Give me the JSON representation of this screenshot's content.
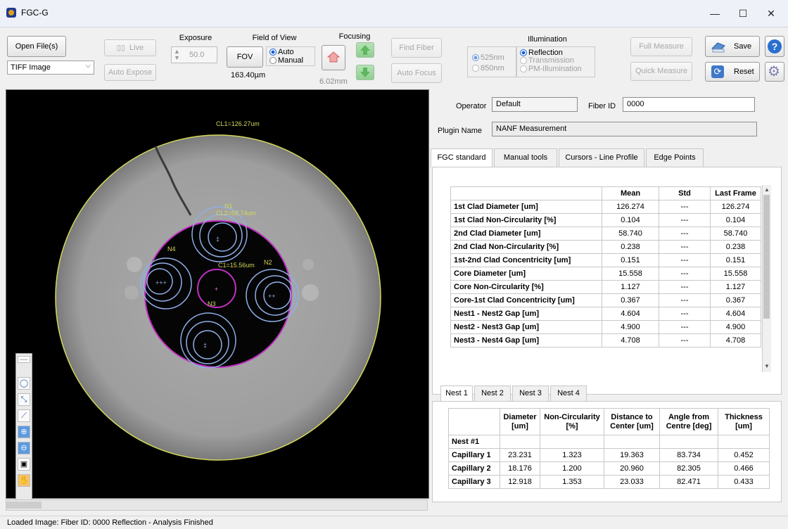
{
  "window": {
    "title": "FGC-G",
    "minimize": "—",
    "maximize": "☐",
    "close": "✕"
  },
  "toolbar": {
    "open_files": "Open File(s)",
    "file_type": "TIFF Image",
    "live": "Live",
    "auto_expose": "Auto Expose",
    "exposure_label": "Exposure",
    "exposure_value": "50.0",
    "fov_label": "Field of View",
    "fov_button": "FOV",
    "fov_auto": "Auto",
    "fov_manual": "Manual",
    "fov_value": "163.40µm",
    "focusing_label": "Focusing",
    "focus_value": "6.02mm",
    "find_fiber": "Find Fiber",
    "auto_focus": "Auto Focus",
    "illumination_label": "Illumination",
    "wl_525": "525nm",
    "wl_850": "850nm",
    "illum_reflection": "Reflection",
    "illum_transmission": "Transmission",
    "illum_pm": "PM-Illumination",
    "full_measure": "Full Measure",
    "quick_measure": "Quick Measure",
    "save": "Save",
    "reset": "Reset"
  },
  "image": {
    "cl1_label": "CL1=126.27um",
    "cl2_label": "CL2=58.74um",
    "core_label": "C1=15.56um",
    "n1": "N1",
    "n2": "N2",
    "n3": "N3",
    "n4": "N4"
  },
  "form": {
    "operator_label": "Operator",
    "operator_value": "Default",
    "fiber_id_label": "Fiber ID",
    "fiber_id_value": "0000",
    "plugin_label": "Plugin Name",
    "plugin_value": "NANF Measurement"
  },
  "tabs": [
    "FGC standard",
    "Manual tools",
    "Cursors - Line Profile",
    "Edge Points"
  ],
  "measurements": {
    "headers": [
      "",
      "Mean",
      "Std",
      "Last Frame"
    ],
    "rows": [
      [
        "1st Clad Diameter [um]",
        "126.274",
        "---",
        "126.274"
      ],
      [
        "1st Clad Non-Circularity [%]",
        "0.104",
        "---",
        "0.104"
      ],
      [
        "2nd Clad Diameter [um]",
        "58.740",
        "---",
        "58.740"
      ],
      [
        "2nd Clad Non-Circularity [%]",
        "0.238",
        "---",
        "0.238"
      ],
      [
        "1st-2nd Clad Concentricity [um]",
        "0.151",
        "---",
        "0.151"
      ],
      [
        "Core Diameter [um]",
        "15.558",
        "---",
        "15.558"
      ],
      [
        "Core Non-Circularity [%]",
        "1.127",
        "---",
        "1.127"
      ],
      [
        "Core-1st Clad Concentricity [um]",
        "0.367",
        "---",
        "0.367"
      ],
      [
        "Nest1 - Nest2 Gap [um]",
        "4.604",
        "---",
        "4.604"
      ],
      [
        "Nest2 - Nest3 Gap [um]",
        "4.900",
        "---",
        "4.900"
      ],
      [
        "Nest3 - Nest4 Gap [um]",
        "4.708",
        "---",
        "4.708"
      ]
    ]
  },
  "nest_tabs": [
    "Nest 1",
    "Nest 2",
    "Nest 3",
    "Nest 4"
  ],
  "nest_table": {
    "headers": [
      "",
      "Diameter [um]",
      "Non-Circularity [%]",
      "Distance to Center [um]",
      "Angle from Centre [deg]",
      "Thickness [um]"
    ],
    "group_label": "Nest #1",
    "rows": [
      [
        "Capillary 1",
        "23.231",
        "1.323",
        "19.363",
        "83.734",
        "0.452"
      ],
      [
        "Capillary 2",
        "18.176",
        "1.200",
        "20.960",
        "82.305",
        "0.466"
      ],
      [
        "Capillary 3",
        "12.918",
        "1.353",
        "23.033",
        "82.471",
        "0.433"
      ]
    ]
  },
  "status": "Loaded Image: Fiber ID: 0000 Reflection - Analysis Finished"
}
